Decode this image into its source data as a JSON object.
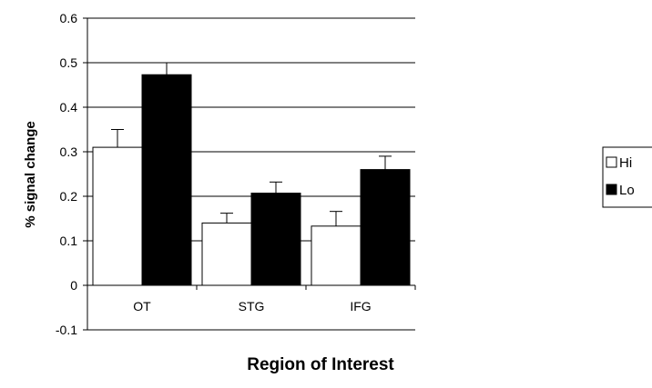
{
  "chart_data": {
    "type": "bar",
    "title": "",
    "xlabel": "Region of Interest",
    "ylabel": "% signal change",
    "categories": [
      "OT",
      "STG",
      "IFG"
    ],
    "series": [
      {
        "name": "Hi",
        "values": [
          0.31,
          0.14,
          0.133
        ],
        "errors": [
          0.04,
          0.022,
          0.033
        ],
        "color": "#ffffff"
      },
      {
        "name": "Lo",
        "values": [
          0.473,
          0.207,
          0.26
        ],
        "errors": [
          0.027,
          0.025,
          0.03
        ],
        "color": "#000000"
      }
    ],
    "ylim": [
      -0.1,
      0.6
    ],
    "yticks": [
      "-0.1",
      "0",
      "0.1",
      "0.2",
      "0.3",
      "0.4",
      "0.5",
      "0.6"
    ],
    "grid": "horizontal",
    "legend_position": "right"
  }
}
